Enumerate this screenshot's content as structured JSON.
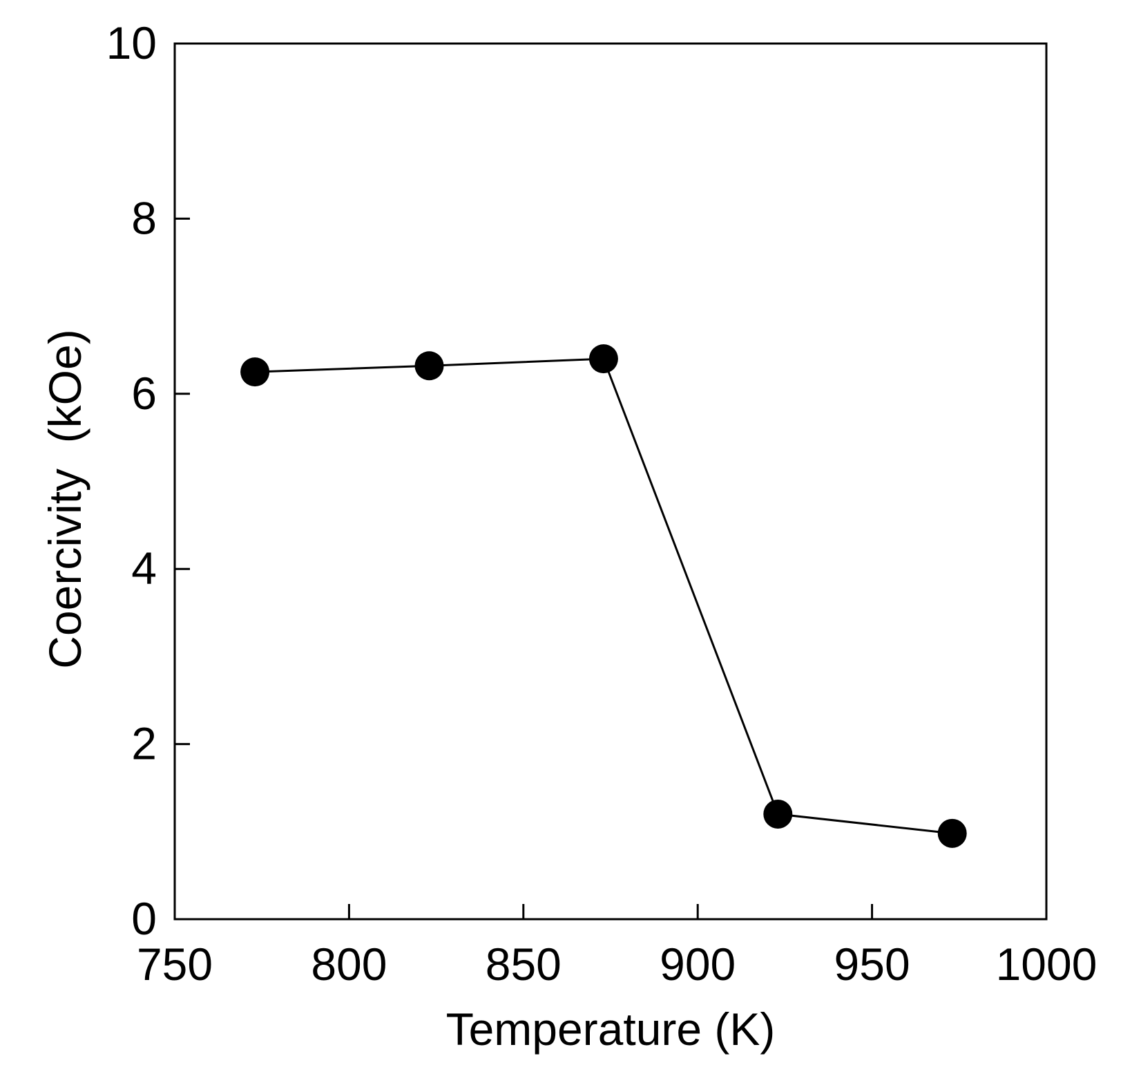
{
  "chart_data": {
    "type": "line",
    "xlabel": "Temperature (K)",
    "ylabel": "Coercivity  (kOe)",
    "xlim": [
      750,
      1000
    ],
    "ylim": [
      0,
      10
    ],
    "xticks": [
      "750",
      "800",
      "850",
      "900",
      "950",
      "1000"
    ],
    "yticks": [
      "0",
      "2",
      "4",
      "6",
      "8",
      "10"
    ],
    "grid": false,
    "legend": "none",
    "series": [
      {
        "x": [
          773,
          823,
          873,
          923,
          973
        ],
        "y": [
          6.25,
          6.32,
          6.4,
          1.2,
          0.98
        ],
        "marker": "filled-circle",
        "color": "#000000"
      }
    ]
  }
}
